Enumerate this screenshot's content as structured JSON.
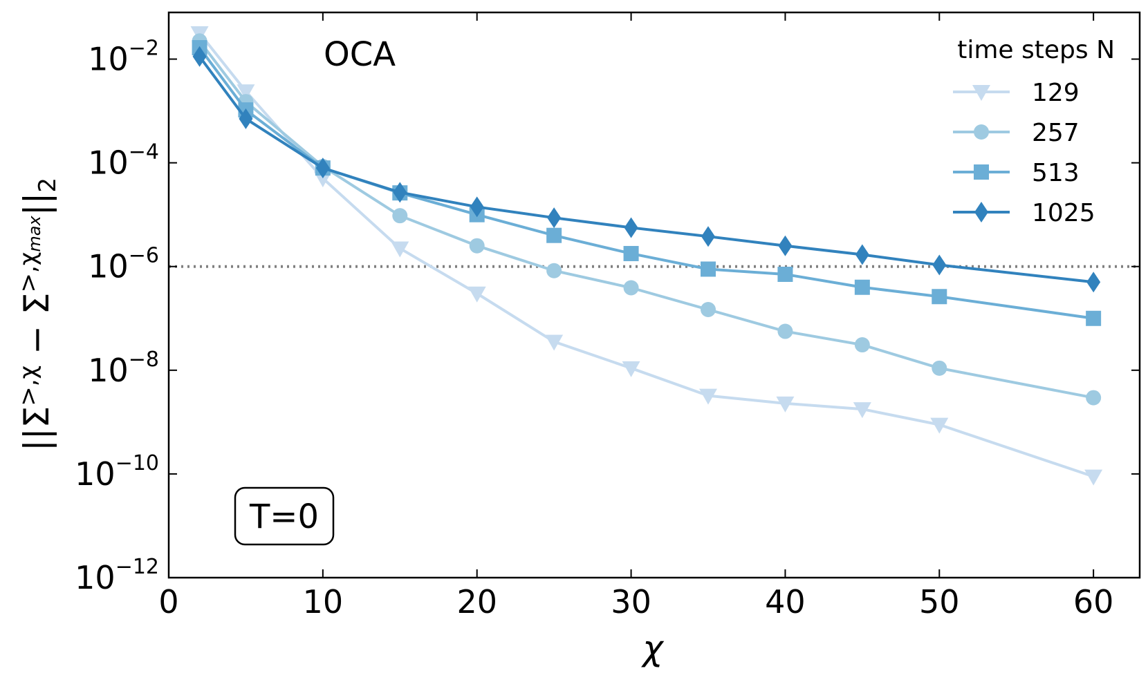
{
  "chart_data": {
    "type": "line",
    "title": "OCA",
    "xlabel": "χ",
    "ylabel": "||Σ^{>,χ} − Σ^{>,χ_max}||_2",
    "yscale": "log",
    "xlim": [
      0,
      63
    ],
    "ylim_exp": [
      -12,
      -1.1
    ],
    "x_ticks": [
      "0",
      "10",
      "20",
      "30",
      "40",
      "50",
      "60"
    ],
    "y_ticks": [
      {
        "base": "10",
        "exp": "−2",
        "value_exp": -2
      },
      {
        "base": "10",
        "exp": "−4",
        "value_exp": -4
      },
      {
        "base": "10",
        "exp": "−6",
        "value_exp": -6
      },
      {
        "base": "10",
        "exp": "−8",
        "value_exp": -8
      },
      {
        "base": "10",
        "exp": "−10",
        "value_exp": -10
      },
      {
        "base": "10",
        "exp": "−12",
        "value_exp": -12
      }
    ],
    "reference_line": {
      "y_exp": -6,
      "style": "dotted",
      "color": "#808080"
    },
    "annotation_box": "T=0",
    "legend": {
      "title": "time steps N",
      "position": "top-right"
    },
    "series": [
      {
        "name": "129",
        "marker": "triangle-down",
        "color": "#c6dbef",
        "x": [
          2,
          5,
          10,
          15,
          20,
          25,
          30,
          35,
          40,
          45,
          50,
          60
        ],
        "log10_y": [
          -1.5,
          -2.62,
          -4.3,
          -5.65,
          -6.52,
          -7.45,
          -7.96,
          -8.49,
          -8.64,
          -8.75,
          -9.05,
          -10.05
        ]
      },
      {
        "name": "257",
        "marker": "circle",
        "color": "#9ecae1",
        "x": [
          2,
          5,
          10,
          15,
          20,
          25,
          30,
          35,
          40,
          45,
          50,
          60
        ],
        "log10_y": [
          -1.65,
          -2.82,
          -4.07,
          -5.02,
          -5.6,
          -6.08,
          -6.41,
          -6.83,
          -7.25,
          -7.51,
          -7.96,
          -8.53
        ]
      },
      {
        "name": "513",
        "marker": "square",
        "color": "#6baed6",
        "x": [
          2,
          5,
          10,
          15,
          20,
          25,
          30,
          35,
          40,
          45,
          50,
          60
        ],
        "log10_y": [
          -1.78,
          -2.98,
          -4.1,
          -4.58,
          -5.0,
          -5.4,
          -5.75,
          -6.05,
          -6.15,
          -6.4,
          -6.58,
          -7.0
        ]
      },
      {
        "name": "1025",
        "marker": "diamond",
        "color": "#3182bd",
        "x": [
          2,
          5,
          10,
          15,
          20,
          25,
          30,
          35,
          40,
          45,
          50,
          60
        ],
        "log10_y": [
          -1.95,
          -3.15,
          -4.1,
          -4.57,
          -4.85,
          -5.06,
          -5.25,
          -5.42,
          -5.6,
          -5.77,
          -5.97,
          -6.3
        ]
      }
    ]
  }
}
